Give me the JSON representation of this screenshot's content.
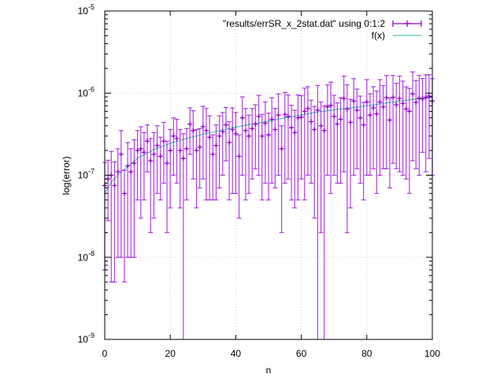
{
  "chart_data": {
    "type": "scatter",
    "xlabel": "n",
    "ylabel": "log(error)",
    "xlim": [
      0,
      100
    ],
    "ylim": [
      1e-09,
      1e-05
    ],
    "yscale": "log",
    "grid": true,
    "legend_position": "top-right",
    "x_ticks": [
      "0",
      "20",
      "40",
      "60",
      "80",
      "100"
    ],
    "y_ticks": [
      {
        "base": "10",
        "exp": "-9"
      },
      {
        "base": "10",
        "exp": "-8"
      },
      {
        "base": "10",
        "exp": "-7"
      },
      {
        "base": "10",
        "exp": "-6"
      },
      {
        "base": "10",
        "exp": "-5"
      }
    ],
    "series": [
      {
        "name": "\"results/errSR_x_2stat.dat\" using 0:1:2",
        "kind": "errorbars",
        "color": "#9400d3",
        "x": [
          0,
          1,
          2,
          3,
          4,
          5,
          6,
          7,
          8,
          9,
          10,
          11,
          12,
          13,
          14,
          15,
          16,
          17,
          18,
          19,
          20,
          21,
          22,
          23,
          24,
          25,
          26,
          27,
          28,
          29,
          30,
          31,
          32,
          33,
          34,
          35,
          36,
          37,
          38,
          39,
          40,
          41,
          42,
          43,
          44,
          45,
          46,
          47,
          48,
          49,
          50,
          51,
          52,
          53,
          54,
          55,
          56,
          57,
          58,
          59,
          60,
          61,
          62,
          63,
          64,
          65,
          66,
          67,
          68,
          69,
          70,
          71,
          72,
          73,
          74,
          75,
          76,
          77,
          78,
          79,
          80,
          81,
          82,
          83,
          84,
          85,
          86,
          87,
          88,
          89,
          90,
          91,
          92,
          93,
          94,
          95,
          96,
          97,
          98,
          99,
          100
        ],
        "y": [
          7.5e-08,
          9e-08,
          1e-07,
          7.5e-08,
          1.1e-07,
          1.8e-07,
          6e-08,
          1.3e-07,
          1.1e-07,
          1.4e-07,
          2e-07,
          2.1e-07,
          1.9e-07,
          2.6e-07,
          1.5e-07,
          1.8e-07,
          2.3e-07,
          1.7e-07,
          2.6e-07,
          1.4e-07,
          2e-07,
          3e-07,
          2.8e-07,
          2e-07,
          1.6e-07,
          2.1e-07,
          4.2e-07,
          3.5e-07,
          2e-07,
          2.2e-07,
          3.9e-07,
          3.5e-07,
          2.9e-07,
          1.8e-07,
          2.3e-07,
          3e-07,
          3.4e-07,
          4.1e-07,
          2.5e-07,
          3.6e-07,
          3.2e-07,
          1.7e-07,
          5e-07,
          3.5e-07,
          3e-07,
          3.7e-07,
          4.2e-07,
          5.2e-07,
          3e-07,
          4.3e-07,
          3.1e-07,
          4.8e-07,
          3.6e-07,
          5.4e-07,
          2.1e-07,
          5.5e-07,
          5.2e-07,
          3.8e-07,
          3.3e-07,
          5e-07,
          5.1e-07,
          6e-07,
          6.5e-07,
          4.5e-07,
          3.6e-07,
          6.2e-07,
          4e-07,
          3.5e-07,
          6.8e-07,
          7.1e-07,
          5.2e-07,
          4.2e-07,
          4.8e-07,
          8.6e-07,
          6.4e-07,
          4.4e-07,
          8e-07,
          6.2e-07,
          5e-07,
          4.1e-07,
          7.8e-07,
          5.4e-07,
          6.6e-07,
          5.6e-07,
          7.8e-07,
          6.8e-07,
          8.8e-07,
          4.7e-07,
          8.9e-07,
          7.2e-07,
          8.6e-07,
          7.5e-07,
          6.4e-07,
          6e-07,
          9.8e-07,
          7.7e-07,
          8.7e-07,
          8.5e-07,
          8.9e-07,
          9.2e-07,
          8e-07
        ],
        "yerr": [
          6.8e-08,
          6.2e-08,
          9.5e-08,
          7e-08,
          1e-07,
          1.7e-07,
          5.5e-08,
          1.2e-07,
          1e-07,
          1.3e-07,
          1.5e-07,
          1.8e-07,
          1.4e-07,
          1.5e-07,
          1.3e-07,
          1.5e-07,
          1.7e-07,
          1.2e-07,
          1.8e-07,
          1.2e-07,
          1.6e-07,
          2e-07,
          2e-07,
          1.6e-07,
          1.6e-07,
          1.6e-07,
          2.4e-07,
          2.6e-07,
          1.6e-07,
          1.5e-07,
          3e-07,
          3e-07,
          2.4e-07,
          1.3e-07,
          1.8e-07,
          2.3e-07,
          2.4e-07,
          2.6e-07,
          2e-07,
          3e-07,
          2.6e-07,
          1.4e-07,
          4e-07,
          3e-07,
          2.4e-07,
          2.8e-07,
          3e-07,
          4.2e-07,
          2.5e-07,
          3.5e-07,
          2.6e-07,
          4e-07,
          2.9e-07,
          4.4e-07,
          1.9e-07,
          4.7e-07,
          4.3e-07,
          3.3e-07,
          2.9e-07,
          4.5e-07,
          4.2e-07,
          5.5e-07,
          5.5e-07,
          3.7e-07,
          3.3e-07,
          6.2e-07,
          3.8e-07,
          3.5e-07,
          5.8e-07,
          6.5e-07,
          4.2e-07,
          3.4e-07,
          4e-07,
          7.5e-07,
          6.2e-07,
          4e-07,
          7e-07,
          5e-07,
          4.2e-07,
          3.6e-07,
          6.8e-07,
          4.4e-07,
          5.4e-07,
          5e-07,
          6.8e-07,
          5.6e-07,
          7.6e-07,
          4e-07,
          7.5e-07,
          6e-07,
          7.5e-07,
          6.5e-07,
          5.5e-07,
          5.4e-07,
          8.3e-07,
          6.5e-07,
          7.7e-07,
          6.6e-07,
          7.8e-07,
          7.6e-07,
          7e-07
        ]
      },
      {
        "name": "f(x)",
        "kind": "line",
        "color": "#4fc9b0",
        "x": [
          0,
          2,
          5,
          10,
          15,
          20,
          25,
          30,
          35,
          40,
          45,
          50,
          55,
          60,
          65,
          70,
          75,
          80,
          85,
          90,
          95,
          100
        ],
        "y": [
          6e-08,
          8.2e-08,
          1.1e-07,
          1.6e-07,
          2.05e-07,
          2.45e-07,
          2.8e-07,
          3.15e-07,
          3.5e-07,
          3.85e-07,
          4.2e-07,
          4.55e-07,
          5e-07,
          5.4e-07,
          5.9e-07,
          6.25e-07,
          6.6e-07,
          7e-07,
          7.5e-07,
          8e-07,
          8.5e-07,
          8.8e-07
        ]
      }
    ]
  }
}
